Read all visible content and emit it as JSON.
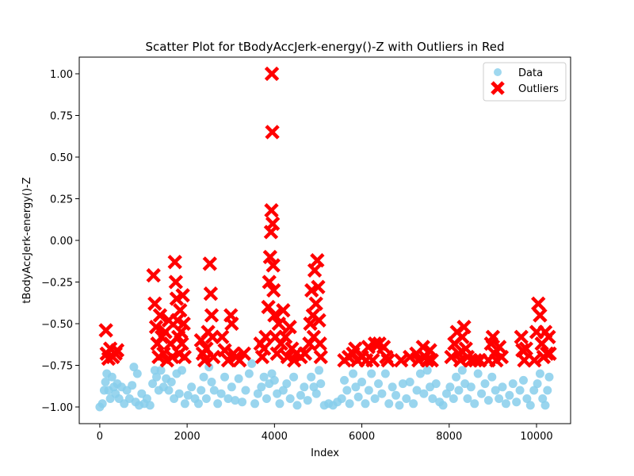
{
  "chart_data": {
    "type": "scatter",
    "title": "Scatter Plot for tBodyAccJerk-energy()-Z with Outliers in Red",
    "xlabel": "Index",
    "ylabel": "tBodyAccJerk-energy()-Z",
    "xlim": [
      -470,
      10780
    ],
    "ylim": [
      -1.1,
      1.1
    ],
    "xticks": [
      0,
      2000,
      4000,
      6000,
      8000,
      10000
    ],
    "xtick_labels": [
      "0",
      "2000",
      "4000",
      "6000",
      "8000",
      "10000"
    ],
    "yticks": [
      -1.0,
      -0.75,
      -0.5,
      -0.25,
      0.0,
      0.25,
      0.5,
      0.75,
      1.0
    ],
    "ytick_labels": [
      "−1.00",
      "−0.75",
      "−0.50",
      "−0.25",
      "0.00",
      "0.25",
      "0.50",
      "0.75",
      "1.00"
    ],
    "legend": {
      "placement": "top-right"
    },
    "grid": false,
    "series": [
      {
        "name": "Data",
        "color": "#87ceeb",
        "marker": "circle",
        "points": [
          [
            0,
            -1.0
          ],
          [
            60,
            -0.98
          ],
          [
            100,
            -0.9
          ],
          [
            130,
            -0.85
          ],
          [
            160,
            -0.8
          ],
          [
            200,
            -0.9
          ],
          [
            240,
            -0.95
          ],
          [
            280,
            -0.82
          ],
          [
            320,
            -0.88
          ],
          [
            360,
            -0.92
          ],
          [
            400,
            -0.86
          ],
          [
            440,
            -0.95
          ],
          [
            500,
            -0.88
          ],
          [
            560,
            -0.98
          ],
          [
            620,
            -0.9
          ],
          [
            680,
            -0.95
          ],
          [
            740,
            -0.87
          ],
          [
            780,
            -0.76
          ],
          [
            820,
            -0.97
          ],
          [
            860,
            -0.8
          ],
          [
            900,
            -0.99
          ],
          [
            960,
            -0.92
          ],
          [
            1020,
            -0.98
          ],
          [
            1080,
            -0.95
          ],
          [
            1150,
            -0.99
          ],
          [
            1210,
            -0.86
          ],
          [
            1260,
            -0.78
          ],
          [
            1300,
            -0.82
          ],
          [
            1350,
            -0.9
          ],
          [
            1400,
            -0.78
          ],
          [
            1460,
            -0.88
          ],
          [
            1520,
            -0.83
          ],
          [
            1580,
            -0.9
          ],
          [
            1640,
            -0.85
          ],
          [
            1700,
            -0.95
          ],
          [
            1760,
            -0.8
          ],
          [
            1820,
            -0.92
          ],
          [
            1880,
            -0.78
          ],
          [
            1950,
            -0.98
          ],
          [
            2020,
            -0.93
          ],
          [
            2100,
            -0.88
          ],
          [
            2180,
            -0.95
          ],
          [
            2260,
            -0.98
          ],
          [
            2320,
            -0.9
          ],
          [
            2380,
            -0.82
          ],
          [
            2440,
            -0.95
          ],
          [
            2500,
            -0.76
          ],
          [
            2560,
            -0.85
          ],
          [
            2620,
            -0.9
          ],
          [
            2700,
            -0.98
          ],
          [
            2780,
            -0.92
          ],
          [
            2860,
            -0.82
          ],
          [
            2940,
            -0.95
          ],
          [
            3020,
            -0.88
          ],
          [
            3100,
            -0.96
          ],
          [
            3180,
            -0.83
          ],
          [
            3260,
            -0.97
          ],
          [
            3340,
            -0.9
          ],
          [
            3420,
            -0.8
          ],
          [
            3480,
            -0.74
          ],
          [
            3550,
            -0.98
          ],
          [
            3620,
            -0.92
          ],
          [
            3700,
            -0.88
          ],
          [
            3760,
            -0.82
          ],
          [
            3820,
            -0.95
          ],
          [
            3880,
            -0.86
          ],
          [
            3940,
            -0.8
          ],
          [
            4000,
            -0.84
          ],
          [
            4060,
            -0.92
          ],
          [
            4120,
            -0.98
          ],
          [
            4200,
            -0.9
          ],
          [
            4280,
            -0.86
          ],
          [
            4360,
            -0.95
          ],
          [
            4440,
            -0.82
          ],
          [
            4520,
            -0.99
          ],
          [
            4600,
            -0.93
          ],
          [
            4680,
            -0.88
          ],
          [
            4760,
            -0.96
          ],
          [
            4840,
            -0.82
          ],
          [
            4900,
            -0.88
          ],
          [
            4960,
            -0.92
          ],
          [
            5020,
            -0.78
          ],
          [
            5060,
            -0.86
          ],
          [
            5140,
            -0.99
          ],
          [
            5240,
            -0.98
          ],
          [
            5340,
            -0.99
          ],
          [
            5440,
            -0.97
          ],
          [
            5540,
            -0.95
          ],
          [
            5600,
            -0.84
          ],
          [
            5660,
            -0.9
          ],
          [
            5720,
            -0.98
          ],
          [
            5800,
            -0.8
          ],
          [
            5860,
            -0.88
          ],
          [
            5920,
            -0.94
          ],
          [
            6000,
            -0.85
          ],
          [
            6080,
            -0.98
          ],
          [
            6160,
            -0.9
          ],
          [
            6220,
            -0.8
          ],
          [
            6300,
            -0.95
          ],
          [
            6380,
            -0.86
          ],
          [
            6460,
            -0.92
          ],
          [
            6540,
            -0.8
          ],
          [
            6620,
            -0.98
          ],
          [
            6700,
            -0.88
          ],
          [
            6780,
            -0.93
          ],
          [
            6860,
            -0.99
          ],
          [
            6940,
            -0.86
          ],
          [
            7020,
            -0.95
          ],
          [
            7100,
            -0.85
          ],
          [
            7180,
            -0.98
          ],
          [
            7260,
            -0.9
          ],
          [
            7340,
            -0.8
          ],
          [
            7420,
            -0.92
          ],
          [
            7500,
            -0.78
          ],
          [
            7560,
            -0.88
          ],
          [
            7620,
            -0.95
          ],
          [
            7700,
            -0.86
          ],
          [
            7780,
            -0.97
          ],
          [
            7860,
            -0.99
          ],
          [
            7940,
            -0.92
          ],
          [
            8020,
            -0.88
          ],
          [
            8100,
            -0.95
          ],
          [
            8160,
            -0.82
          ],
          [
            8220,
            -0.9
          ],
          [
            8300,
            -0.78
          ],
          [
            8360,
            -0.86
          ],
          [
            8420,
            -0.95
          ],
          [
            8500,
            -0.88
          ],
          [
            8580,
            -0.98
          ],
          [
            8660,
            -0.8
          ],
          [
            8740,
            -0.92
          ],
          [
            8820,
            -0.86
          ],
          [
            8900,
            -0.96
          ],
          [
            8980,
            -0.82
          ],
          [
            9060,
            -0.9
          ],
          [
            9140,
            -0.95
          ],
          [
            9220,
            -0.88
          ],
          [
            9300,
            -0.98
          ],
          [
            9380,
            -0.93
          ],
          [
            9460,
            -0.86
          ],
          [
            9540,
            -0.97
          ],
          [
            9620,
            -0.9
          ],
          [
            9700,
            -0.84
          ],
          [
            9780,
            -0.95
          ],
          [
            9860,
            -0.99
          ],
          [
            9940,
            -0.9
          ],
          [
            10020,
            -0.86
          ],
          [
            10080,
            -0.8
          ],
          [
            10140,
            -0.95
          ],
          [
            10200,
            -0.99
          ],
          [
            10250,
            -0.9
          ],
          [
            10290,
            -0.82
          ]
        ]
      },
      {
        "name": "Outliers",
        "color": "#ff0000",
        "marker": "x",
        "points": [
          [
            140,
            -0.54
          ],
          [
            160,
            -0.68
          ],
          [
            200,
            -0.71
          ],
          [
            240,
            -0.65
          ],
          [
            300,
            -0.7
          ],
          [
            360,
            -0.68
          ],
          [
            400,
            -0.66
          ],
          [
            1230,
            -0.21
          ],
          [
            1260,
            -0.38
          ],
          [
            1290,
            -0.52
          ],
          [
            1320,
            -0.62
          ],
          [
            1350,
            -0.7
          ],
          [
            1380,
            -0.45
          ],
          [
            1420,
            -0.58
          ],
          [
            1460,
            -0.68
          ],
          [
            1500,
            -0.55
          ],
          [
            1540,
            -0.72
          ],
          [
            1580,
            -0.48
          ],
          [
            1620,
            -0.62
          ],
          [
            1660,
            -0.7
          ],
          [
            1720,
            -0.13
          ],
          [
            1740,
            -0.25
          ],
          [
            1760,
            -0.35
          ],
          [
            1780,
            -0.48
          ],
          [
            1800,
            -0.58
          ],
          [
            1820,
            -0.68
          ],
          [
            1840,
            -0.42
          ],
          [
            1860,
            -0.55
          ],
          [
            1880,
            -0.62
          ],
          [
            1900,
            -0.33
          ],
          [
            1920,
            -0.5
          ],
          [
            1940,
            -0.7
          ],
          [
            2320,
            -0.6
          ],
          [
            2360,
            -0.68
          ],
          [
            2400,
            -0.72
          ],
          [
            2440,
            -0.65
          ],
          [
            2480,
            -0.55
          ],
          [
            2520,
            -0.14
          ],
          [
            2540,
            -0.32
          ],
          [
            2560,
            -0.45
          ],
          [
            2580,
            -0.58
          ],
          [
            2600,
            -0.7
          ],
          [
            2800,
            -0.58
          ],
          [
            2860,
            -0.66
          ],
          [
            2940,
            -0.72
          ],
          [
            3000,
            -0.45
          ],
          [
            3020,
            -0.5
          ],
          [
            3060,
            -0.68
          ],
          [
            3120,
            -0.7
          ],
          [
            3200,
            -0.72
          ],
          [
            3300,
            -0.68
          ],
          [
            3680,
            -0.62
          ],
          [
            3720,
            -0.7
          ],
          [
            3760,
            -0.65
          ],
          [
            3800,
            -0.58
          ],
          [
            3860,
            -0.4
          ],
          [
            3880,
            -0.25
          ],
          [
            3900,
            -0.1
          ],
          [
            3920,
            0.05
          ],
          [
            3930,
            0.18
          ],
          [
            3940,
            1.0
          ],
          [
            3950,
            0.65
          ],
          [
            3960,
            0.1
          ],
          [
            3970,
            -0.15
          ],
          [
            3980,
            -0.3
          ],
          [
            4000,
            -0.45
          ],
          [
            4020,
            -0.58
          ],
          [
            4060,
            -0.68
          ],
          [
            4100,
            -0.5
          ],
          [
            4150,
            -0.62
          ],
          [
            4200,
            -0.42
          ],
          [
            4250,
            -0.58
          ],
          [
            4300,
            -0.7
          ],
          [
            4350,
            -0.52
          ],
          [
            4400,
            -0.65
          ],
          [
            4450,
            -0.72
          ],
          [
            4500,
            -0.68
          ],
          [
            4600,
            -0.7
          ],
          [
            4700,
            -0.68
          ],
          [
            4800,
            -0.62
          ],
          [
            4820,
            -0.5
          ],
          [
            4850,
            -0.3
          ],
          [
            4880,
            -0.45
          ],
          [
            4900,
            -0.58
          ],
          [
            4920,
            -0.18
          ],
          [
            4950,
            -0.38
          ],
          [
            4980,
            -0.12
          ],
          [
            5000,
            -0.28
          ],
          [
            5020,
            -0.48
          ],
          [
            5040,
            -0.62
          ],
          [
            5060,
            -0.7
          ],
          [
            5600,
            -0.72
          ],
          [
            5700,
            -0.7
          ],
          [
            5800,
            -0.68
          ],
          [
            5850,
            -0.65
          ],
          [
            5900,
            -0.72
          ],
          [
            6000,
            -0.7
          ],
          [
            6100,
            -0.72
          ],
          [
            6150,
            -0.64
          ],
          [
            6250,
            -0.72
          ],
          [
            6300,
            -0.62
          ],
          [
            6400,
            -0.62
          ],
          [
            6500,
            -0.64
          ],
          [
            6560,
            -0.7
          ],
          [
            6600,
            -0.72
          ],
          [
            6900,
            -0.72
          ],
          [
            7100,
            -0.7
          ],
          [
            7250,
            -0.68
          ],
          [
            7300,
            -0.72
          ],
          [
            7400,
            -0.64
          ],
          [
            7450,
            -0.7
          ],
          [
            7500,
            -0.72
          ],
          [
            7560,
            -0.66
          ],
          [
            7600,
            -0.72
          ],
          [
            8050,
            -0.7
          ],
          [
            8120,
            -0.62
          ],
          [
            8180,
            -0.55
          ],
          [
            8220,
            -0.68
          ],
          [
            8260,
            -0.72
          ],
          [
            8300,
            -0.58
          ],
          [
            8340,
            -0.52
          ],
          [
            8380,
            -0.65
          ],
          [
            8420,
            -0.7
          ],
          [
            8500,
            -0.72
          ],
          [
            8600,
            -0.72
          ],
          [
            8700,
            -0.72
          ],
          [
            8900,
            -0.72
          ],
          [
            8960,
            -0.62
          ],
          [
            9000,
            -0.58
          ],
          [
            9040,
            -0.68
          ],
          [
            9080,
            -0.72
          ],
          [
            9150,
            -0.64
          ],
          [
            9200,
            -0.7
          ],
          [
            9650,
            -0.58
          ],
          [
            9680,
            -0.66
          ],
          [
            9720,
            -0.72
          ],
          [
            9760,
            -0.65
          ],
          [
            9950,
            -0.72
          ],
          [
            10000,
            -0.55
          ],
          [
            10040,
            -0.38
          ],
          [
            10080,
            -0.45
          ],
          [
            10120,
            -0.62
          ],
          [
            10160,
            -0.7
          ],
          [
            10200,
            -0.55
          ],
          [
            10240,
            -0.68
          ],
          [
            10280,
            -0.58
          ],
          [
            10300,
            -0.68
          ]
        ]
      }
    ]
  }
}
